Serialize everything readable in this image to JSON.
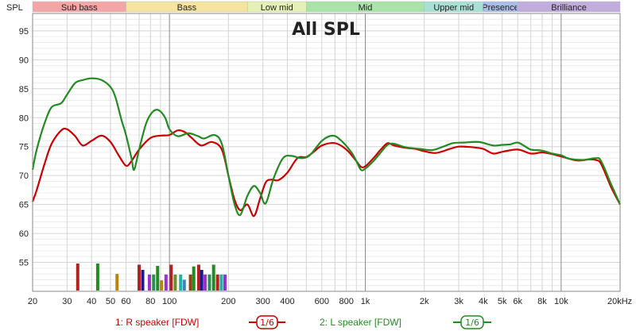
{
  "chart_data": {
    "type": "line",
    "title": "All SPL",
    "ylabel": "SPL",
    "xunit_label": "20kHz",
    "x_scale": "log",
    "xlim": [
      20,
      20000
    ],
    "ylim": [
      50,
      98
    ],
    "grid": true,
    "y_ticks": [
      55,
      60,
      65,
      70,
      75,
      80,
      85,
      90,
      95
    ],
    "x_ticks": [
      {
        "value": 20,
        "label": "20"
      },
      {
        "value": 30,
        "label": "30"
      },
      {
        "value": 40,
        "label": "40"
      },
      {
        "value": 50,
        "label": "50"
      },
      {
        "value": 60,
        "label": "60"
      },
      {
        "value": 80,
        "label": "80"
      },
      {
        "value": 100,
        "label": "100"
      },
      {
        "value": 200,
        "label": "200"
      },
      {
        "value": 300,
        "label": "300"
      },
      {
        "value": 400,
        "label": "400"
      },
      {
        "value": 600,
        "label": "600"
      },
      {
        "value": 800,
        "label": "800"
      },
      {
        "value": 1000,
        "label": "1k"
      },
      {
        "value": 2000,
        "label": "2k"
      },
      {
        "value": 3000,
        "label": "3k"
      },
      {
        "value": 4000,
        "label": "4k"
      },
      {
        "value": 5000,
        "label": "5k"
      },
      {
        "value": 6000,
        "label": "6k"
      },
      {
        "value": 8000,
        "label": "8k"
      },
      {
        "value": 10000,
        "label": "10k"
      }
    ],
    "bands": [
      {
        "label": "Sub bass",
        "from": 20,
        "to": 60,
        "color": "#f4a6a6"
      },
      {
        "label": "Bass",
        "from": 60,
        "to": 250,
        "color": "#f5e4a0"
      },
      {
        "label": "Low mid",
        "from": 250,
        "to": 500,
        "color": "#e4f0b6"
      },
      {
        "label": "Mid",
        "from": 500,
        "to": 2000,
        "color": "#a9e3a9"
      },
      {
        "label": "Upper mid",
        "from": 2000,
        "to": 4000,
        "color": "#a9e0d6"
      },
      {
        "label": "Presence",
        "from": 4000,
        "to": 6000,
        "color": "#a9bde8"
      },
      {
        "label": "Brilliance",
        "from": 6000,
        "to": 20000,
        "color": "#c0addb"
      }
    ],
    "series": [
      {
        "name": "1: R speaker [FDW]",
        "smoothing": "1/6",
        "color": "#cc0000",
        "points": [
          [
            20,
            65.5
          ],
          [
            21,
            67.5
          ],
          [
            23,
            72
          ],
          [
            25,
            75.5
          ],
          [
            28,
            77.8
          ],
          [
            30,
            78
          ],
          [
            33,
            76.8
          ],
          [
            36,
            75.2
          ],
          [
            40,
            76
          ],
          [
            45,
            76.9
          ],
          [
            50,
            75.8
          ],
          [
            55,
            73.5
          ],
          [
            60,
            71.7
          ],
          [
            64,
            72.5
          ],
          [
            70,
            74.5
          ],
          [
            80,
            76.5
          ],
          [
            90,
            76.9
          ],
          [
            100,
            77
          ],
          [
            110,
            77.8
          ],
          [
            120,
            77.5
          ],
          [
            130,
            76.5
          ],
          [
            145,
            75.2
          ],
          [
            165,
            75.8
          ],
          [
            185,
            74.5
          ],
          [
            200,
            70
          ],
          [
            215,
            65.8
          ],
          [
            230,
            64
          ],
          [
            250,
            65
          ],
          [
            270,
            63
          ],
          [
            290,
            66
          ],
          [
            310,
            68.8
          ],
          [
            330,
            69.3
          ],
          [
            360,
            69.2
          ],
          [
            400,
            70.5
          ],
          [
            450,
            73
          ],
          [
            500,
            73.2
          ],
          [
            550,
            74.2
          ],
          [
            600,
            75.2
          ],
          [
            700,
            75.6
          ],
          [
            800,
            74.5
          ],
          [
            900,
            72.5
          ],
          [
            950,
            71.5
          ],
          [
            1000,
            71.6
          ],
          [
            1100,
            73
          ],
          [
            1200,
            74.5
          ],
          [
            1300,
            75.6
          ],
          [
            1400,
            75.2
          ],
          [
            1600,
            74.8
          ],
          [
            1800,
            74.6
          ],
          [
            2000,
            74.2
          ],
          [
            2300,
            73.9
          ],
          [
            2700,
            74.6
          ],
          [
            3000,
            75
          ],
          [
            3500,
            74.9
          ],
          [
            4000,
            74.6
          ],
          [
            4500,
            73.8
          ],
          [
            5000,
            74.1
          ],
          [
            6000,
            74.5
          ],
          [
            7000,
            73.8
          ],
          [
            8000,
            74
          ],
          [
            9000,
            73.7
          ],
          [
            10000,
            73.3
          ],
          [
            12000,
            72.6
          ],
          [
            14000,
            72.8
          ],
          [
            15000,
            72.7
          ],
          [
            16000,
            72
          ],
          [
            18000,
            68
          ],
          [
            20000,
            65
          ]
        ]
      },
      {
        "name": "2: L speaker [FDW]",
        "smoothing": "1/6",
        "color": "#228b22",
        "points": [
          [
            20,
            71
          ],
          [
            21,
            74.5
          ],
          [
            23,
            79
          ],
          [
            25,
            81.8
          ],
          [
            28,
            82.5
          ],
          [
            30,
            84
          ],
          [
            33,
            86
          ],
          [
            36,
            86.5
          ],
          [
            40,
            86.8
          ],
          [
            45,
            86.5
          ],
          [
            50,
            85.3
          ],
          [
            53,
            83.5
          ],
          [
            57,
            79.5
          ],
          [
            60,
            77
          ],
          [
            64,
            73
          ],
          [
            66,
            71
          ],
          [
            70,
            74.5
          ],
          [
            76,
            79
          ],
          [
            82,
            81
          ],
          [
            88,
            81.3
          ],
          [
            95,
            80
          ],
          [
            100,
            78
          ],
          [
            110,
            76.8
          ],
          [
            125,
            77.3
          ],
          [
            140,
            76.8
          ],
          [
            150,
            76.4
          ],
          [
            170,
            77
          ],
          [
            185,
            75.5
          ],
          [
            200,
            70
          ],
          [
            215,
            65
          ],
          [
            230,
            63.2
          ],
          [
            250,
            66.5
          ],
          [
            270,
            68.2
          ],
          [
            290,
            67
          ],
          [
            310,
            65.2
          ],
          [
            340,
            69.5
          ],
          [
            380,
            73
          ],
          [
            420,
            73.4
          ],
          [
            470,
            73
          ],
          [
            520,
            73.5
          ],
          [
            600,
            76
          ],
          [
            680,
            76.9
          ],
          [
            750,
            76.1
          ],
          [
            850,
            74
          ],
          [
            900,
            72.5
          ],
          [
            950,
            71
          ],
          [
            1000,
            71.2
          ],
          [
            1100,
            72.5
          ],
          [
            1200,
            74
          ],
          [
            1300,
            75.3
          ],
          [
            1400,
            75.5
          ],
          [
            1600,
            74.9
          ],
          [
            1900,
            74.6
          ],
          [
            2200,
            74.4
          ],
          [
            2500,
            75
          ],
          [
            2800,
            75.6
          ],
          [
            3200,
            75.7
          ],
          [
            3800,
            75.8
          ],
          [
            4500,
            75.2
          ],
          [
            5000,
            75.3
          ],
          [
            5500,
            75.4
          ],
          [
            6000,
            75.7
          ],
          [
            6500,
            75.1
          ],
          [
            7000,
            74.5
          ],
          [
            8000,
            74.3
          ],
          [
            9000,
            73.8
          ],
          [
            10000,
            73.5
          ],
          [
            11000,
            72.9
          ],
          [
            13000,
            72.7
          ],
          [
            15000,
            73
          ],
          [
            16000,
            72.5
          ],
          [
            18000,
            68.5
          ],
          [
            20000,
            65
          ]
        ]
      }
    ],
    "histogram_bars": [
      {
        "x": 34,
        "top": 54.8,
        "color": "#b22222"
      },
      {
        "x": 43,
        "top": 54.8,
        "color": "#228b22"
      },
      {
        "x": 54,
        "top": 53.0,
        "color": "#b8860b"
      },
      {
        "x": 70,
        "top": 54.6,
        "color": "#b22222"
      },
      {
        "x": 73,
        "top": 53.7,
        "color": "#1a1a8c"
      },
      {
        "x": 79,
        "top": 52.9,
        "color": "#9932cc"
      },
      {
        "x": 83,
        "top": 52.9,
        "color": "#2e8b57"
      },
      {
        "x": 87,
        "top": 54.4,
        "color": "#228b22"
      },
      {
        "x": 91,
        "top": 51.9,
        "color": "#b8860b"
      },
      {
        "x": 96,
        "top": 52.9,
        "color": "#9932cc"
      },
      {
        "x": 102,
        "top": 54.6,
        "color": "#b22222"
      },
      {
        "x": 107,
        "top": 52.9,
        "color": "#6b8e23"
      },
      {
        "x": 114,
        "top": 52.9,
        "color": "#20b2aa"
      },
      {
        "x": 119,
        "top": 52.0,
        "color": "#4682b4"
      },
      {
        "x": 128,
        "top": 52.9,
        "color": "#8b4513"
      },
      {
        "x": 133,
        "top": 54.3,
        "color": "#228b22"
      },
      {
        "x": 141,
        "top": 54.6,
        "color": "#b22222"
      },
      {
        "x": 146,
        "top": 53.7,
        "color": "#1a1a8c"
      },
      {
        "x": 152,
        "top": 52.9,
        "color": "#9932cc"
      },
      {
        "x": 160,
        "top": 52.9,
        "color": "#2e8b57"
      },
      {
        "x": 168,
        "top": 54.6,
        "color": "#228b22"
      },
      {
        "x": 176,
        "top": 52.9,
        "color": "#b22222"
      },
      {
        "x": 184,
        "top": 52.9,
        "color": "#20b2aa"
      },
      {
        "x": 192,
        "top": 52.9,
        "color": "#9932cc"
      }
    ]
  }
}
